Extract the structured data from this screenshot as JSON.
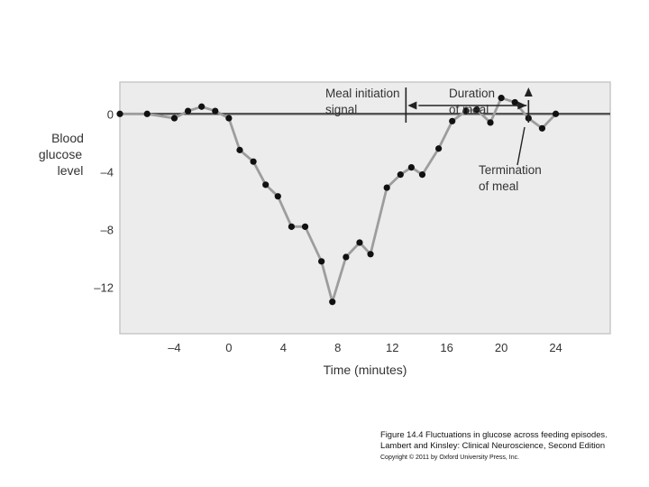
{
  "chart_data": {
    "type": "line",
    "xlabel": "Time (minutes)",
    "ylabel_lines": [
      "Blood",
      "glucose",
      "level"
    ],
    "xlim": [
      -8,
      28
    ],
    "ylim": [
      -15.2,
      2.2
    ],
    "xticks": [
      -4,
      0,
      4,
      8,
      12,
      16,
      20,
      24
    ],
    "xtick_labels": [
      "–4",
      "0",
      "4",
      "8",
      "12",
      "16",
      "20",
      "24"
    ],
    "yticks": [
      0,
      -4,
      -8,
      -12
    ],
    "ytick_labels": [
      "0",
      "–4",
      "–8",
      "–12"
    ],
    "baseline": 0,
    "grid": false,
    "series": [
      {
        "x": [
          -8,
          -6,
          -4,
          -3,
          -2,
          -1,
          0,
          0.8,
          1.8,
          2.7,
          3.6,
          4.6,
          5.6,
          6.8,
          7.6,
          8.6,
          9.6,
          10.4,
          11.6,
          12.6,
          13.4,
          14.2,
          15.4,
          16.4,
          17.4,
          18.2,
          19.2,
          20,
          21,
          22,
          23,
          24
        ],
        "y": [
          0,
          0,
          -0.3,
          0.2,
          0.5,
          0.2,
          -0.3,
          -2.5,
          -3.3,
          -4.9,
          -5.7,
          -7.8,
          -7.8,
          -10.2,
          -13,
          -9.9,
          -8.9,
          -9.7,
          -5.1,
          -4.2,
          -3.7,
          -4.2,
          -2.4,
          -0.5,
          0.2,
          0.3,
          -0.6,
          1.1,
          0.8,
          -0.3,
          -1,
          0
        ]
      }
    ],
    "annotations": {
      "meal_initiation": {
        "lines": [
          "Meal initiation",
          "signal"
        ],
        "x": 13
      },
      "duration": {
        "lines": [
          "Duration",
          "of meal"
        ],
        "x_start": 13,
        "x_end": 22
      },
      "termination": {
        "lines": [
          "Termination",
          "of meal"
        ],
        "x": 22
      }
    }
  },
  "caption": {
    "line1": "Figure 14.4  Fluctuations in glucose across feeding episodes.",
    "line2": "Lambert and Kinsley: Clinical Neuroscience, Second Edition",
    "line3": "Copyright © 2011 by Oxford University Press, Inc."
  },
  "colors": {
    "plot_background": "#ececec",
    "plot_border": "#c8c8c8",
    "baseline": "#555555",
    "series_line": "#9d9d9d",
    "marker": "#111111",
    "annotation": "#222222"
  }
}
